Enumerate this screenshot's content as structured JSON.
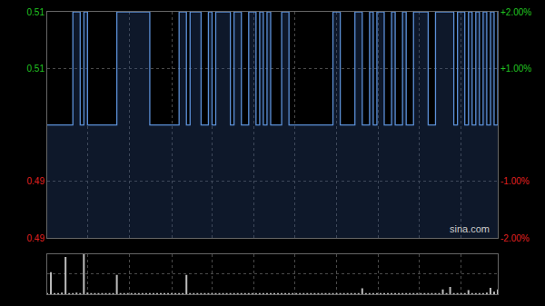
{
  "chart_data": [
    {
      "type": "line",
      "line_style": "step",
      "color": "#5b8fd6",
      "grid": true,
      "tick_labels": "y",
      "annotation": "sina.com",
      "x": [
        0,
        1,
        2,
        3,
        4,
        5,
        6,
        7,
        8,
        9,
        10,
        11,
        12,
        13,
        14,
        15,
        16,
        17,
        18,
        19,
        20,
        21,
        22,
        23,
        24,
        25,
        26,
        27,
        28,
        29,
        30,
        31,
        32,
        33,
        34,
        35,
        36,
        37,
        38,
        39,
        40,
        41,
        42,
        43,
        44,
        45,
        46,
        47,
        48,
        49,
        50,
        51,
        52,
        53,
        54,
        55,
        56,
        57,
        58,
        59,
        60,
        61,
        62,
        63,
        64,
        65,
        66,
        67,
        68,
        69,
        70,
        71,
        72,
        73,
        74,
        75,
        76,
        77,
        78,
        79,
        80,
        81,
        82,
        83,
        84,
        85,
        86,
        87,
        88,
        89,
        90,
        91,
        92,
        93,
        94,
        95,
        96,
        97,
        98,
        99,
        100,
        101,
        102,
        103,
        104,
        105,
        106,
        107,
        108,
        109,
        110,
        111,
        112,
        113,
        114,
        115,
        116,
        117,
        118,
        119,
        120,
        121,
        122,
        123
      ],
      "values": [
        0.5,
        0.5,
        0.5,
        0.5,
        0.5,
        0.5,
        0.5,
        0.51,
        0.51,
        0.5,
        0.51,
        0.5,
        0.5,
        0.5,
        0.5,
        0.5,
        0.5,
        0.5,
        0.5,
        0.51,
        0.51,
        0.51,
        0.51,
        0.51,
        0.51,
        0.51,
        0.51,
        0.51,
        0.5,
        0.5,
        0.5,
        0.5,
        0.5,
        0.5,
        0.5,
        0.5,
        0.51,
        0.51,
        0.5,
        0.51,
        0.51,
        0.51,
        0.5,
        0.5,
        0.51,
        0.5,
        0.51,
        0.51,
        0.51,
        0.51,
        0.5,
        0.51,
        0.51,
        0.5,
        0.5,
        0.51,
        0.51,
        0.5,
        0.51,
        0.5,
        0.51,
        0.5,
        0.5,
        0.5,
        0.51,
        0.51,
        0.5,
        0.5,
        0.5,
        0.5,
        0.5,
        0.5,
        0.5,
        0.5,
        0.5,
        0.5,
        0.5,
        0.5,
        0.51,
        0.51,
        0.5,
        0.5,
        0.5,
        0.5,
        0.51,
        0.51,
        0.5,
        0.5,
        0.51,
        0.5,
        0.51,
        0.51,
        0.5,
        0.5,
        0.51,
        0.5,
        0.5,
        0.51,
        0.5,
        0.5,
        0.51,
        0.51,
        0.51,
        0.51,
        0.5,
        0.5,
        0.51,
        0.51,
        0.51,
        0.51,
        0.51,
        0.5,
        0.51,
        0.51,
        0.5,
        0.51,
        0.5,
        0.51,
        0.5,
        0.51,
        0.5,
        0.51,
        0.5,
        0.51
      ],
      "xlim": [
        0,
        123
      ],
      "xticks": [
        11,
        22.5,
        34,
        45,
        56.5,
        67.5,
        79,
        90.5,
        101.5,
        113
      ],
      "ylim": [
        0.49,
        0.51
      ],
      "yticks": [
        {
          "value": 0.49,
          "label": "0.49"
        },
        {
          "value": 0.495,
          "label": "0.49"
        },
        {
          "value": 0.505,
          "label": "0.51"
        },
        {
          "value": 0.51,
          "label": "0.51"
        }
      ],
      "y2lim": [
        -2,
        2
      ],
      "y2ticks": [
        {
          "value": -2,
          "label": "-2.00%"
        },
        {
          "value": -1,
          "label": "-1.00%"
        },
        {
          "value": 1,
          "label": "+1.00%"
        },
        {
          "value": 2,
          "label": "+2.00%"
        }
      ]
    },
    {
      "type": "bar",
      "color": "#bbbbbb",
      "grid": true,
      "tick_labels": false,
      "x": [
        0,
        1,
        2,
        3,
        4,
        5,
        6,
        7,
        8,
        9,
        10,
        11,
        12,
        13,
        14,
        15,
        16,
        17,
        18,
        19,
        20,
        21,
        22,
        23,
        24,
        25,
        26,
        27,
        28,
        29,
        30,
        31,
        32,
        33,
        34,
        35,
        36,
        37,
        38,
        39,
        40,
        41,
        42,
        43,
        44,
        45,
        46,
        47,
        48,
        49,
        50,
        51,
        52,
        53,
        54,
        55,
        56,
        57,
        58,
        59,
        60,
        61,
        62,
        63,
        64,
        65,
        66,
        67,
        68,
        69,
        70,
        71,
        72,
        73,
        74,
        75,
        76,
        77,
        78,
        79,
        80,
        81,
        82,
        83,
        84,
        85,
        86,
        87,
        88,
        89,
        90,
        91,
        92,
        93,
        94,
        95,
        96,
        97,
        98,
        99,
        100,
        101,
        102,
        103,
        104,
        105,
        106,
        107,
        108,
        109,
        110,
        111,
        112,
        113,
        114,
        115,
        116,
        117,
        118,
        119,
        120,
        121,
        122,
        123
      ],
      "values": [
        2,
        55,
        3,
        2,
        4,
        93,
        3,
        2,
        4,
        3,
        100,
        4,
        2,
        3,
        2,
        1,
        2,
        3,
        2,
        48,
        3,
        2,
        2,
        1,
        2,
        1,
        1,
        2,
        1,
        1,
        1,
        1,
        2,
        1,
        1,
        1,
        2,
        1,
        48,
        2,
        1,
        1,
        1,
        1,
        2,
        1,
        1,
        1,
        1,
        1,
        1,
        1,
        1,
        1,
        2,
        1,
        1,
        1,
        1,
        1,
        1,
        1,
        1,
        1,
        1,
        1,
        1,
        1,
        1,
        1,
        1,
        1,
        1,
        1,
        1,
        1,
        1,
        1,
        1,
        1,
        1,
        1,
        1,
        1,
        1,
        1,
        15,
        1,
        1,
        1,
        1,
        1,
        1,
        1,
        1,
        1,
        1,
        1,
        2,
        1,
        2,
        1,
        1,
        1,
        1,
        3,
        1,
        2,
        12,
        3,
        18,
        2,
        3,
        1,
        2,
        10,
        3,
        2,
        1,
        2,
        4,
        16,
        6,
        12
      ],
      "xlim": [
        0,
        123
      ],
      "xticks": [
        11,
        22.5,
        34,
        45,
        56.5,
        67.5,
        79,
        90.5,
        101.5,
        113
      ],
      "ylim": [
        0,
        100
      ],
      "yticks": [
        50
      ]
    }
  ]
}
